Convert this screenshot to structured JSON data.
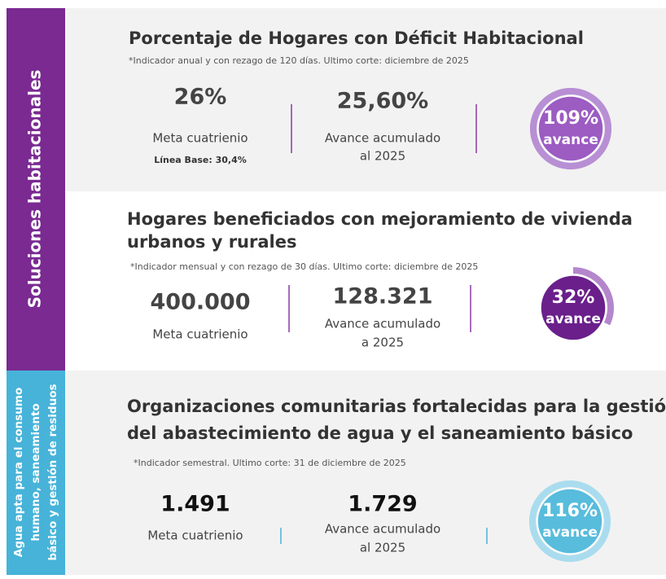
{
  "sidebar": [
    {
      "lines": [
        "Soluciones habitacionales"
      ]
    },
    {
      "lines": [
        "Agua apta para el consumo",
        "humano, saneamiento",
        "básico y gestión de residuos"
      ]
    }
  ],
  "indicators": [
    {
      "title_lines": [
        "Porcentaje de Hogares con Déficit Habitacional"
      ],
      "note": "*Indicador anual y con rezago de 120 días. Ultimo corte: diciembre de 2025",
      "meta": {
        "value": "26%",
        "label": "Meta cuatrienio",
        "baseline": "Línea Base: 30,4%"
      },
      "avance": {
        "value": "25,60%",
        "label_lines": [
          "Avance acumulado",
          "al 2025"
        ]
      },
      "progress": 109,
      "progress_label": "109%",
      "progress_text": "avance"
    },
    {
      "title_lines": [
        "Hogares beneficiados con mejoramiento de vivienda",
        "urbanos y rurales"
      ],
      "note": "*Indicador mensual y con rezago de 30 días. Ultimo corte: diciembre de 2025",
      "meta": {
        "value": "400.000",
        "label": "Meta cuatrienio"
      },
      "avance": {
        "value": "128.321",
        "label_lines": [
          "Avance acumulado",
          "a 2025"
        ]
      },
      "progress": 32,
      "progress_label": "32%",
      "progress_text": "avance"
    },
    {
      "title_lines": [
        "Organizaciones comunitarias fortalecidas para la gestión",
        "del abastecimiento de agua y el saneamiento básico"
      ],
      "note": "*Indicador semestral. Ultimo corte: 31 de diciembre de 2025",
      "meta": {
        "value": "1.491",
        "label": "Meta cuatrienio"
      },
      "avance": {
        "value": "1.729",
        "label_lines": [
          "Avance acumulado",
          "al 2025"
        ]
      },
      "progress": 116,
      "progress_label": "116%",
      "progress_text": "avance"
    }
  ]
}
